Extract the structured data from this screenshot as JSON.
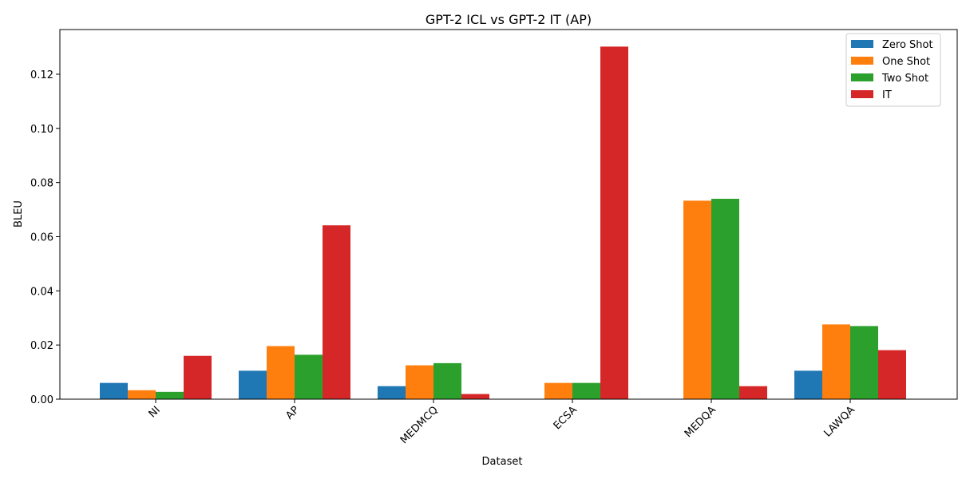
{
  "chart_data": {
    "type": "bar",
    "title": "GPT-2 ICL vs GPT-2 IT (AP)",
    "xlabel": "Dataset",
    "ylabel": "BLEU",
    "categories": [
      "NI",
      "AP",
      "MEDMCQ",
      "ECSA",
      "MEDQA",
      "LAWQA"
    ],
    "ylim": [
      0,
      0.1365
    ],
    "yticks": [
      "0.00",
      "0.02",
      "0.04",
      "0.06",
      "0.08",
      "0.10",
      "0.12"
    ],
    "legend_position": "top-right",
    "grid": false,
    "series": [
      {
        "name": "Zero Shot",
        "color": "#1f77b4",
        "values": [
          0.006,
          0.0105,
          0.0048,
          0.0,
          0.0,
          0.0105
        ]
      },
      {
        "name": "One Shot",
        "color": "#ff7f0e",
        "values": [
          0.0033,
          0.0196,
          0.0125,
          0.006,
          0.0733,
          0.0276
        ]
      },
      {
        "name": "Two Shot",
        "color": "#2ca02c",
        "values": [
          0.0027,
          0.0164,
          0.0133,
          0.006,
          0.074,
          0.027
        ]
      },
      {
        "name": "IT",
        "color": "#d62728",
        "values": [
          0.016,
          0.0642,
          0.0019,
          0.1302,
          0.0048,
          0.0181
        ]
      }
    ]
  }
}
